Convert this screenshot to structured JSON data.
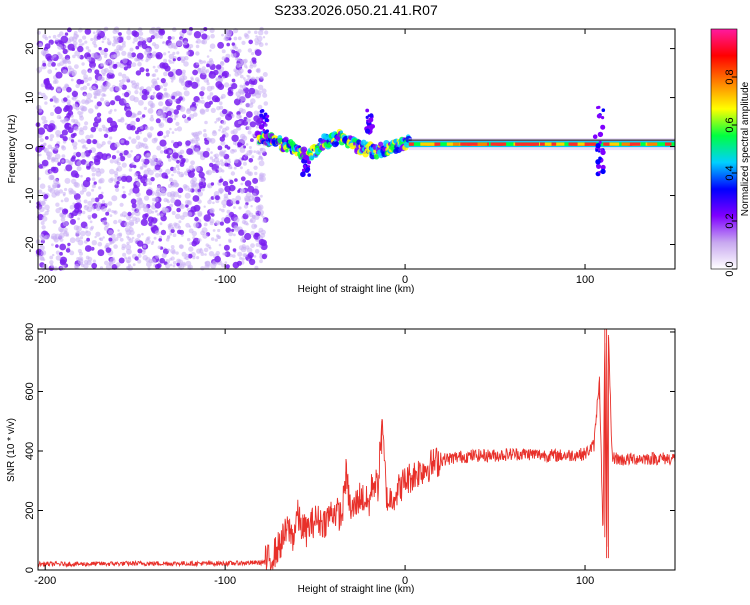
{
  "figure": {
    "title": "S233.2026.050.21.41.R07"
  },
  "chart_data": [
    {
      "type": "heatmap",
      "title": "S233.2026.050.21.41.R07",
      "xlabel": "Height of straight line (km)",
      "ylabel": "Frequency (Hz)",
      "xlim": [
        -204,
        150
      ],
      "ylim": [
        -25,
        24
      ],
      "xticks": [
        -200,
        -100,
        0,
        100
      ],
      "xtick_labels": [
        "-200",
        "-100",
        "0",
        "100"
      ],
      "yticks": [
        20,
        10,
        0,
        -10,
        -20
      ],
      "ytick_labels": [
        "20",
        "10",
        "0",
        "-10",
        "-20"
      ],
      "description_regions": [
        {
          "x_range": [
            -204,
            -77
          ],
          "kind": "scattered noise",
          "freq_range": [
            -25,
            24
          ]
        },
        {
          "x_range": [
            -82,
            2
          ],
          "kind": "wandering signal",
          "center_hz": [
            2,
            1,
            0,
            -2,
            1,
            2,
            0,
            -1,
            0,
            1
          ]
        },
        {
          "x_range": [
            2,
            150
          ],
          "kind": "steady carrier",
          "center_hz": 0.5
        }
      ],
      "colorbar": {
        "label": "Normalized spectral amplitude",
        "range": [
          0.0,
          1.0
        ],
        "ticks": [
          0.0,
          0.2,
          0.4,
          0.6,
          0.8
        ],
        "tick_labels": [
          "0.0",
          "0.2",
          "0.4",
          "0.6",
          "0.8"
        ],
        "colors": [
          "#ffffff",
          "#c8a8f0",
          "#7f00ff",
          "#0000ff",
          "#00d0ff",
          "#00ff40",
          "#ffff00",
          "#ff8000",
          "#ff0000",
          "#ff1aa0"
        ]
      }
    },
    {
      "type": "line",
      "title": "",
      "xlabel": "Height of straight line (km)",
      "ylabel": "SNR (10 * v/v)",
      "xlim": [
        -204,
        150
      ],
      "ylim": [
        0,
        810
      ],
      "xticks": [
        -200,
        -100,
        0,
        100
      ],
      "xtick_labels": [
        "-200",
        "-100",
        "0",
        "100"
      ],
      "yticks": [
        0,
        200,
        400,
        600,
        800
      ],
      "ytick_labels": [
        "0",
        "200",
        "400",
        "600",
        "800"
      ],
      "series": [
        {
          "name": "SNR",
          "color": "#e8302a",
          "x": [
            -204,
            -180,
            -150,
            -120,
            -100,
            -80,
            -75,
            -70,
            -65,
            -62,
            -60,
            -58,
            -55,
            -50,
            -45,
            -40,
            -35,
            -33,
            -30,
            -25,
            -20,
            -18,
            -15,
            -13,
            -10,
            -5,
            0,
            5,
            10,
            20,
            30,
            40,
            50,
            60,
            70,
            80,
            90,
            100,
            105,
            108,
            110,
            111,
            112,
            113,
            115,
            120,
            130,
            140,
            150
          ],
          "y": [
            20,
            20,
            22,
            22,
            22,
            25,
            35,
            80,
            140,
            110,
            190,
            150,
            130,
            170,
            160,
            200,
            180,
            330,
            190,
            250,
            220,
            300,
            280,
            500,
            230,
            260,
            300,
            320,
            340,
            370,
            380,
            385,
            385,
            390,
            390,
            385,
            385,
            390,
            420,
            650,
            110,
            810,
            40,
            790,
            380,
            370,
            375,
            375,
            375
          ]
        }
      ]
    }
  ]
}
